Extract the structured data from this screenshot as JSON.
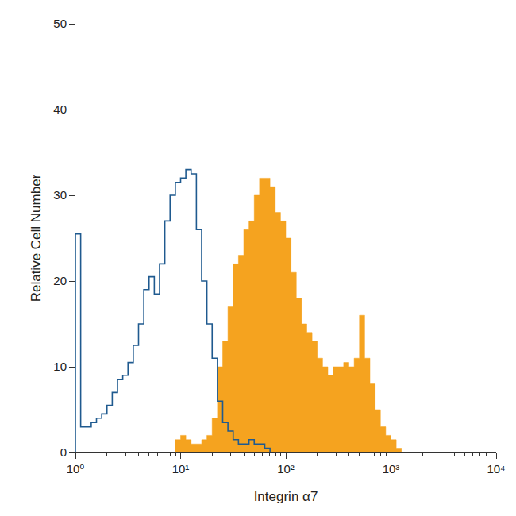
{
  "chart_data": {
    "type": "histogram",
    "xlabel": "Integrin α7",
    "ylabel": "Relative Cell Number",
    "log": "x",
    "grid": false,
    "bins": [
      1,
      1.122,
      1.259,
      1.413,
      1.585,
      1.778,
      1.995,
      2.239,
      2.512,
      2.818,
      3.162,
      3.548,
      3.981,
      4.467,
      5.012,
      5.623,
      6.31,
      7.079,
      7.943,
      8.913,
      10,
      11.22,
      12.59,
      14.13,
      15.85,
      17.78,
      19.95,
      22.39,
      25.12,
      28.18,
      31.62,
      35.48,
      39.81,
      44.67,
      50.12,
      56.23,
      63.1,
      70.79,
      79.43,
      89.13,
      100,
      112.2,
      125.9,
      141.3,
      158.5,
      177.8,
      199.5,
      223.9,
      251.2,
      281.8,
      316.2,
      354.8,
      398.1,
      446.7,
      501.2,
      562.3,
      631,
      707.9,
      794.3,
      891.3,
      1000,
      1122,
      1259,
      1413,
      1585
    ],
    "series": [
      {
        "type": "line",
        "color": "#1f5a8f",
        "values": [
          25.5,
          3,
          3,
          3.5,
          4,
          4.5,
          5.5,
          7,
          8.5,
          9,
          10.5,
          12.5,
          15,
          19,
          20.5,
          18.5,
          22,
          27,
          30,
          31.5,
          32,
          33,
          32.5,
          26,
          20,
          15,
          11,
          6,
          3.5,
          2.5,
          1.5,
          1,
          1,
          1.5,
          1,
          1,
          0.5,
          0,
          0,
          0,
          0,
          0,
          0,
          0,
          0,
          0,
          0,
          0,
          0,
          0,
          0,
          0,
          0,
          0,
          0,
          0,
          0,
          0,
          0,
          0,
          0,
          0,
          0,
          0
        ]
      },
      {
        "type": "area",
        "color": "#f5a31f",
        "values": [
          0,
          0,
          0,
          0,
          0,
          0,
          0,
          0,
          0,
          0,
          0,
          0,
          0,
          0,
          0,
          0,
          0,
          0,
          0,
          1.5,
          2,
          1.5,
          1,
          1,
          1.5,
          2,
          4,
          10,
          13,
          17,
          22,
          23,
          26,
          27,
          30,
          32,
          32,
          31,
          28,
          27,
          25,
          21,
          18,
          15,
          14,
          13,
          11,
          10,
          9,
          10,
          10,
          10.5,
          10,
          11,
          16,
          11,
          8,
          5,
          3,
          2,
          1.5,
          0.5,
          0,
          0
        ]
      }
    ],
    "xlim": [
      1,
      10000
    ],
    "xticks": [
      {
        "value": 1,
        "label": "10⁰"
      },
      {
        "value": 10,
        "label": "10¹"
      },
      {
        "value": 100,
        "label": "10²"
      },
      {
        "value": 1000,
        "label": "10³"
      },
      {
        "value": 10000,
        "label": "10⁴"
      }
    ],
    "ylim": [
      0,
      50
    ],
    "yticks": [
      0,
      10,
      20,
      30,
      40,
      50
    ]
  }
}
